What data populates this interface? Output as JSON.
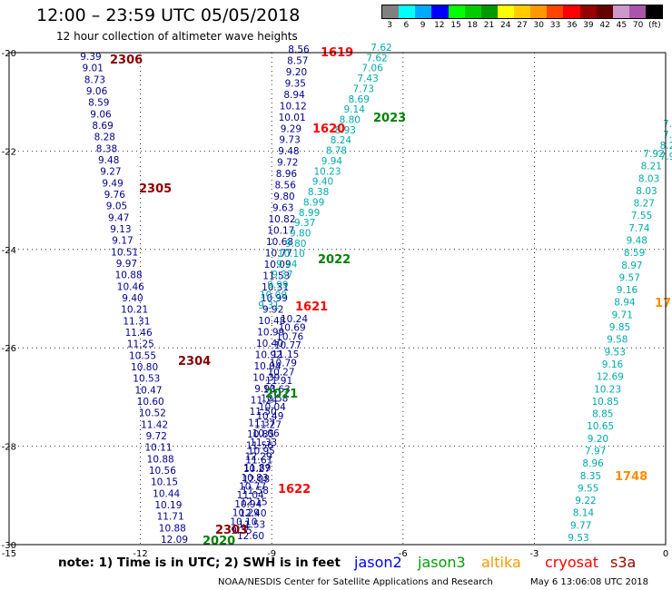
{
  "header": {
    "title": "12:00 – 23:59 UTC 05/05/2018",
    "subtitle": "12 hour collection of altimeter wave heights"
  },
  "legend": {
    "colors": [
      "#808080",
      "#00ffff",
      "#00aaff",
      "#0000ff",
      "#00ff00",
      "#00cc00",
      "#009900",
      "#ffff00",
      "#ffcc00",
      "#ff9900",
      "#ff4400",
      "#ff0000",
      "#990000",
      "#660000",
      "#cc99cc",
      "#aa55aa",
      "#000000"
    ],
    "labels": [
      "3",
      "6",
      "9",
      "12",
      "15",
      "18",
      "21",
      "24",
      "27",
      "30",
      "33",
      "36",
      "39",
      "42",
      "45",
      "70",
      "(ft)"
    ]
  },
  "map": {
    "lon_range": [
      -15,
      0
    ],
    "lat_range": [
      -30,
      -20
    ],
    "x_ticks": [
      "-15",
      "-12",
      "-9",
      "-6",
      "-3",
      "0"
    ],
    "y_ticks": [
      "-20",
      "-22",
      "-24",
      "-26",
      "-28",
      "-30"
    ],
    "grid": "dotted"
  },
  "observations": [
    {
      "satellite": "jason2",
      "color": "#00008b",
      "values": [
        "9.39",
        "9.01",
        "8.73",
        "9.06",
        "8.59",
        "9.06",
        "8.69",
        "8.28",
        "8.38",
        "9.48",
        "9.27",
        "9.49",
        "9.76",
        "9.05",
        "9.47",
        "9.13",
        "9.17",
        "10.51",
        "9.97",
        "10.88",
        "10.46",
        "9.40",
        "10.21",
        "11.31",
        "11.46",
        "11.25",
        "10.55",
        "10.80",
        "10.53",
        "10.47",
        "10.60",
        "10.52",
        "11.42",
        "9.72",
        "10.11",
        "10.88",
        "10.56",
        "10.15",
        "10.44",
        "10.19",
        "11.71",
        "10.88",
        "12.09"
      ]
    },
    {
      "satellite": "jason2",
      "color": "#00008b",
      "values": [
        "9.35",
        "10.10",
        "10.29",
        "10.94",
        "11.04",
        "10.77",
        "10.83",
        "10.27",
        "11.61",
        "10.95",
        "11.33",
        "10.06",
        "11.27",
        "10.49",
        "10.04",
        "10.58",
        "10.63",
        "11.91",
        "10.27",
        "10.79",
        "11.15",
        "10.77",
        "10.76",
        "10.69",
        "10.24"
      ]
    },
    {
      "satellite": "jason2",
      "color": "#00008b",
      "values": [
        "8.56",
        "8.57",
        "9.20",
        "9.35",
        "8.94",
        "10.12",
        "10.01",
        "9.29",
        "9.73",
        "9.48",
        "9.72",
        "8.96",
        "8.56",
        "9.80",
        "9.63",
        "10.82",
        "10.17",
        "10.68",
        "10.77",
        "10.09",
        "11.53",
        "10.31",
        "10.99",
        "9.92",
        "10.48",
        "10.99",
        "10.40",
        "10.92",
        "10.04",
        "10.39",
        "9.93",
        "11.24",
        "11.50",
        "11.37",
        "10.85",
        "11.56",
        "12.29",
        "11.89",
        "12.08",
        "11.58",
        "12.15",
        "12.40",
        "11.53",
        "12.60"
      ]
    },
    {
      "satellite": "jason3",
      "color": "#00aaaa",
      "values": [
        "7.62",
        "7.62",
        "7.06",
        "7.43",
        "7.73",
        "8.69",
        "9.14",
        "8.80",
        "8.93",
        "8.24",
        "8.78",
        "9.94",
        "10.23",
        "9.40",
        "8.38",
        "8.99",
        "8.99",
        "9.37",
        "9.80",
        "9.80",
        "10.10",
        "9.34",
        "9.37",
        "9.99",
        "10.09",
        "9.31"
      ]
    },
    {
      "satellite": "jason3",
      "color": "#00aaaa",
      "values": [
        "7.92",
        "8.21",
        "8.03",
        "8.03",
        "8.27",
        "7.55",
        "7.74",
        "9.48",
        "8.59",
        "8.97",
        "9.57",
        "9.16",
        "8.94",
        "9.71",
        "9.85",
        "9.58",
        "9.53",
        "9.16",
        "12.69",
        "10.23",
        "10.85",
        "8.85",
        "10.65",
        "9.20",
        "7.97",
        "8.96",
        "8.35",
        "9.55",
        "9.22",
        "8.14",
        "9.77",
        "9.53"
      ]
    },
    {
      "satellite": "jason3",
      "color": "#00aaaa",
      "values": [
        "7.",
        "7.",
        "8.2",
        "7.9"
      ]
    }
  ],
  "passes": [
    {
      "id": "2306",
      "color": "#8b0000"
    },
    {
      "id": "2305",
      "color": "#8b0000"
    },
    {
      "id": "2304",
      "color": "#8b0000"
    },
    {
      "id": "2303",
      "color": "#8b0000"
    },
    {
      "id": "1619",
      "color": "#ff0000"
    },
    {
      "id": "1620",
      "color": "#ff0000"
    },
    {
      "id": "1621",
      "color": "#ff0000"
    },
    {
      "id": "1622",
      "color": "#ff0000"
    },
    {
      "id": "2023",
      "color": "#008000"
    },
    {
      "id": "2022",
      "color": "#008000"
    },
    {
      "id": "2021",
      "color": "#008000"
    },
    {
      "id": "2020",
      "color": "#008000"
    },
    {
      "id": "1748",
      "color": "#ff8c00"
    },
    {
      "id": "17",
      "color": "#ff8c00"
    }
  ],
  "footer": {
    "note": "note: 1) Time is in UTC; 2) SWH is in feet",
    "satellites": [
      {
        "name": "jason2",
        "color": "#0000ff"
      },
      {
        "name": "jason3",
        "color": "#00a000"
      },
      {
        "name": "altika",
        "color": "#ff9900"
      },
      {
        "name": "cryosat",
        "color": "#ff0000"
      },
      {
        "name": "s3a",
        "color": "#990000"
      }
    ],
    "credit": "NOAA/NESDIS Center for Satellite Applications and Research",
    "timestamp": "May  6 13:06:08 UTC 2018"
  }
}
